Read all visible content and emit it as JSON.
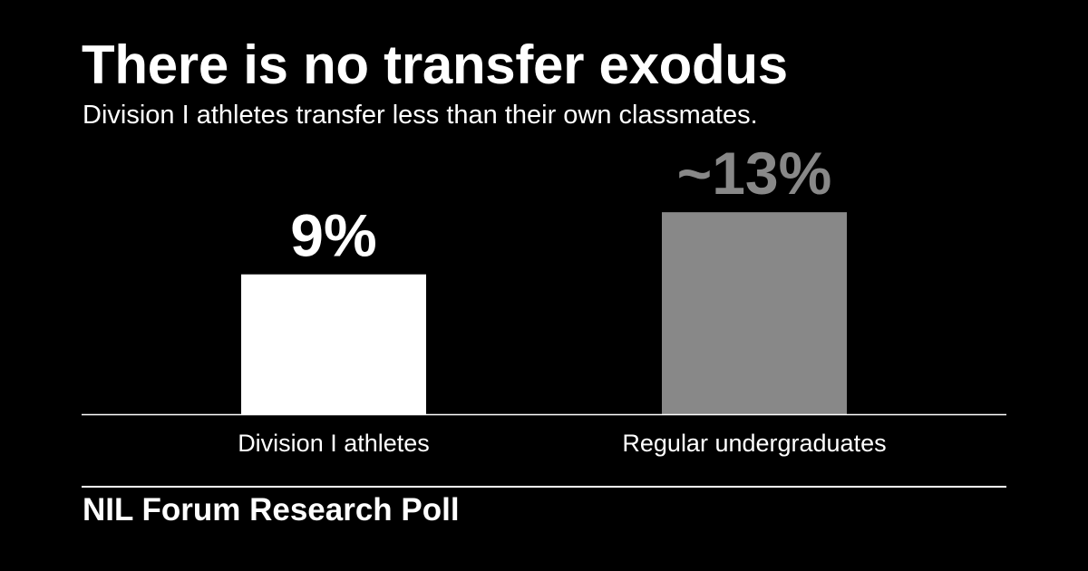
{
  "header": {
    "title": "There is no transfer exodus",
    "subtitle": "Division I athletes transfer less than their own classmates."
  },
  "footer": {
    "source": "NIL Forum Research Poll"
  },
  "colors": {
    "background": "#000000",
    "text": "#ffffff",
    "bar_primary": "#ffffff",
    "bar_secondary": "#888888",
    "label_secondary": "#888888"
  },
  "chart_data": {
    "type": "bar",
    "title": "There is no transfer exodus",
    "subtitle": "Division I athletes transfer less than their own classmates.",
    "categories": [
      "Division I athletes",
      "Regular undergraduates"
    ],
    "values": [
      9,
      13
    ],
    "value_labels": [
      "9%",
      "~13%"
    ],
    "unit": "%",
    "xlabel": "",
    "ylabel": "",
    "ylim": [
      0,
      21
    ],
    "grid": false,
    "legend": "none",
    "bar_colors": [
      "#ffffff",
      "#888888"
    ],
    "label_colors": [
      "#ffffff",
      "#888888"
    ]
  }
}
